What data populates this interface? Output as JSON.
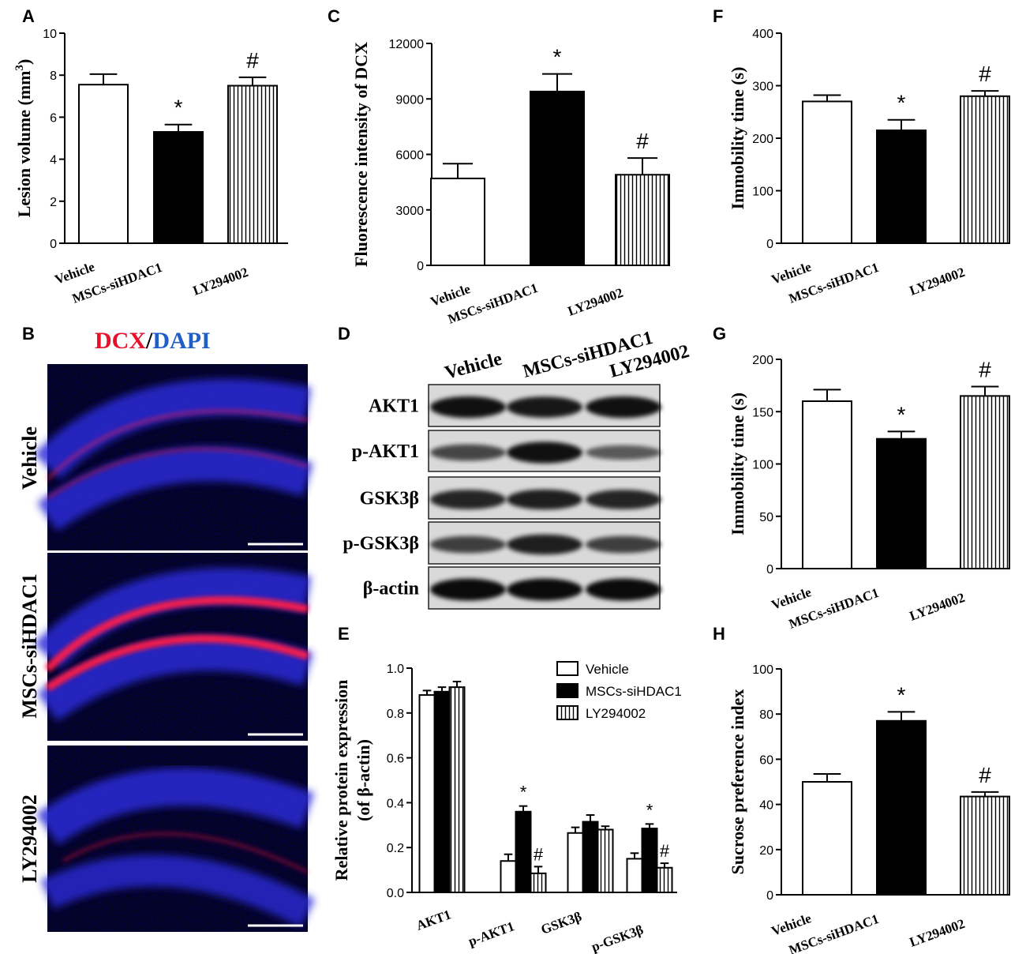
{
  "panels": {
    "A": "A",
    "B": "B",
    "C": "C",
    "D": "D",
    "E": "E",
    "F": "F",
    "G": "G",
    "H": "H"
  },
  "colors": {
    "vehicle": "#ffffff",
    "siHDAC1": "#000000",
    "ly": "vertical-stripe",
    "dcx": "#e8102a",
    "dapi": "#1f5fc8"
  },
  "microscopy": {
    "title_dcx": "DCX",
    "title_sep": "/",
    "title_dapi": "DAPI",
    "rows": [
      "Vehicle",
      "MSCs-siHDAC1",
      "LY294002"
    ]
  },
  "western": {
    "lanes": [
      "Vehicle",
      "MSCs-siHDAC1",
      "LY294002"
    ],
    "rows": [
      "AKT1",
      "p-AKT1",
      "GSK3β",
      "p-GSK3β",
      "β-actin"
    ],
    "band_intensity": [
      [
        0.95,
        0.9,
        0.95
      ],
      [
        0.55,
        0.95,
        0.4
      ],
      [
        0.8,
        0.85,
        0.8
      ],
      [
        0.6,
        0.85,
        0.6
      ],
      [
        1.0,
        1.0,
        1.0
      ]
    ]
  },
  "chart_data": [
    {
      "id": "A",
      "type": "bar",
      "categories": [
        "Vehicle",
        "MSCs-siHDAC1",
        "LY294002"
      ],
      "values": [
        7.55,
        5.3,
        7.5
      ],
      "errors": [
        0.5,
        0.35,
        0.4
      ],
      "annotations": [
        "",
        "*",
        "#"
      ],
      "ylabel": "Lesion volume (mm³)",
      "ylabel_main": "Lesion volume (mm",
      "ylabel_sup": "3",
      "ylabel_end": ")",
      "ylim": [
        0,
        10
      ],
      "yticks": [
        "0",
        "2",
        "4",
        "6",
        "8",
        "10"
      ]
    },
    {
      "id": "C",
      "type": "bar",
      "categories": [
        "Vehicle",
        "MSCs-siHDAC1",
        "LY294002"
      ],
      "values": [
        4700,
        9400,
        4900
      ],
      "errors": [
        800,
        950,
        900
      ],
      "annotations": [
        "",
        "*",
        "#"
      ],
      "ylabel": "Fluorescence intensity of DCX",
      "ylim": [
        0,
        12000
      ],
      "yticks": [
        "0",
        "3000",
        "6000",
        "9000",
        "12000"
      ]
    },
    {
      "id": "F",
      "type": "bar",
      "categories": [
        "Vehicle",
        "MSCs-siHDAC1",
        "LY294002"
      ],
      "values": [
        270,
        215,
        280
      ],
      "errors": [
        12,
        20,
        10
      ],
      "annotations": [
        "",
        "*",
        "#"
      ],
      "ylabel": "Immobility time (s)",
      "ylim": [
        0,
        400
      ],
      "yticks": [
        "0",
        "100",
        "200",
        "300",
        "400"
      ]
    },
    {
      "id": "G",
      "type": "bar",
      "categories": [
        "Vehicle",
        "MSCs-siHDAC1",
        "LY294002"
      ],
      "values": [
        160,
        124,
        165
      ],
      "errors": [
        11,
        7,
        9
      ],
      "annotations": [
        "",
        "*",
        "#"
      ],
      "ylabel": "Immobility time (s)",
      "ylim": [
        0,
        200
      ],
      "yticks": [
        "0",
        "50",
        "100",
        "150",
        "200"
      ]
    },
    {
      "id": "H",
      "type": "bar",
      "categories": [
        "Vehicle",
        "MSCs-siHDAC1",
        "LY294002"
      ],
      "values": [
        50,
        77,
        43.5
      ],
      "errors": [
        3.5,
        4,
        2
      ],
      "annotations": [
        "",
        "*",
        "#"
      ],
      "ylabel": "Sucrose preference index",
      "ylim": [
        0,
        100
      ],
      "yticks": [
        "0",
        "20",
        "40",
        "60",
        "80",
        "100"
      ]
    },
    {
      "id": "E",
      "type": "bar",
      "categories": [
        "AKT1",
        "p-AKT1",
        "GSK3β",
        "p-GSK3β"
      ],
      "series": [
        {
          "name": "Vehicle",
          "values": [
            0.88,
            0.14,
            0.265,
            0.15
          ],
          "errors": [
            0.02,
            0.03,
            0.025,
            0.025
          ]
        },
        {
          "name": "MSCs-siHDAC1",
          "values": [
            0.895,
            0.36,
            0.315,
            0.285
          ],
          "errors": [
            0.02,
            0.025,
            0.03,
            0.02
          ]
        },
        {
          "name": "LY294002",
          "values": [
            0.915,
            0.085,
            0.28,
            0.11
          ],
          "errors": [
            0.025,
            0.03,
            0.015,
            0.02
          ]
        }
      ],
      "annotations": [
        [
          "",
          "",
          ""
        ],
        [
          "",
          "*",
          "#"
        ],
        [
          "",
          "",
          ""
        ],
        [
          "",
          "*",
          "#"
        ]
      ],
      "ylabel": "Relative protein expression",
      "ylabel2": "(of β-actin)",
      "ylim": [
        0,
        1.0
      ],
      "yticks": [
        "0.0",
        "0.2",
        "0.4",
        "0.6",
        "0.8",
        "1.0"
      ],
      "legend": [
        "Vehicle",
        "MSCs-siHDAC1",
        "LY294002"
      ]
    }
  ]
}
